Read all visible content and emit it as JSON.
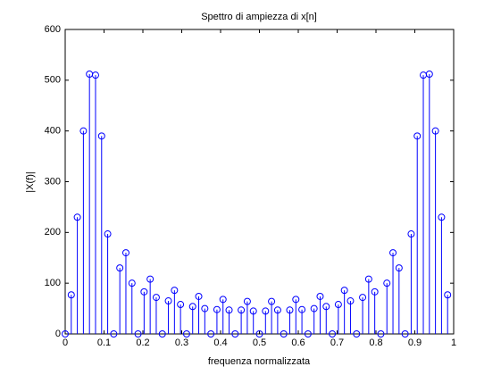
{
  "chart_data": {
    "type": "stem",
    "title": "Spettro di ampiezza di x[n]",
    "x_label": "frequenza normalizzata",
    "y_label": "|X(f)|",
    "color": "#0000ff",
    "x": [
      0,
      0.015625,
      0.03125,
      0.046875,
      0.0625,
      0.078125,
      0.09375,
      0.109375,
      0.125,
      0.140625,
      0.15625,
      0.171875,
      0.1875,
      0.203125,
      0.21875,
      0.234375,
      0.25,
      0.265625,
      0.28125,
      0.296875,
      0.3125,
      0.328125,
      0.34375,
      0.359375,
      0.375,
      0.390625,
      0.40625,
      0.421875,
      0.4375,
      0.453125,
      0.46875,
      0.484375,
      0.5,
      0.515625,
      0.53125,
      0.546875,
      0.5625,
      0.578125,
      0.59375,
      0.609375,
      0.625,
      0.640625,
      0.65625,
      0.671875,
      0.6875,
      0.703125,
      0.71875,
      0.734375,
      0.75,
      0.765625,
      0.78125,
      0.796875,
      0.8125,
      0.828125,
      0.84375,
      0.859375,
      0.875,
      0.890625,
      0.90625,
      0.921875,
      0.9375,
      0.953125,
      0.96875,
      0.984375
    ],
    "values": [
      0,
      77,
      230,
      400,
      512,
      510,
      390,
      197,
      0,
      130,
      160,
      100,
      0,
      83,
      108,
      72,
      0,
      65,
      86,
      58,
      0,
      54,
      74,
      50,
      0,
      48,
      68,
      47,
      0,
      47,
      64,
      45,
      0,
      45,
      64,
      47,
      0,
      47,
      68,
      48,
      0,
      50,
      74,
      54,
      0,
      58,
      86,
      65,
      0,
      72,
      108,
      83,
      0,
      100,
      160,
      130,
      0,
      197,
      390,
      510,
      512,
      400,
      230,
      77
    ],
    "xlim": [
      0,
      1
    ],
    "xticks": [
      0,
      0.1,
      0.2,
      0.3,
      0.4,
      0.5,
      0.6,
      0.7,
      0.8,
      0.9,
      1
    ],
    "ylim": [
      0,
      600
    ],
    "yticks": [
      0,
      100,
      200,
      300,
      400,
      500,
      600
    ]
  }
}
